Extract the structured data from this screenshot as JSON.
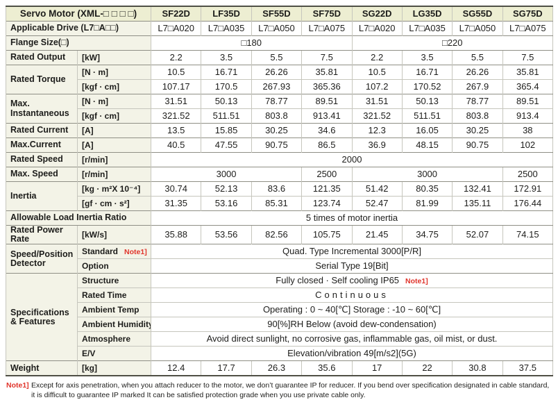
{
  "colors": {
    "header_bg": "#edeed2",
    "label_bg": "#f3f3e7",
    "note_red": "#e0342b",
    "border_light": "#c6c6bd",
    "border_med": "#8f8f85",
    "border_dark": "#4f4f45"
  },
  "table": {
    "title": "Servo Motor (XML-□ □ □ □)",
    "columns": [
      "SF22D",
      "LF35D",
      "SF55D",
      "SF75D",
      "SG22D",
      "LG35D",
      "SG55D",
      "SG75D"
    ],
    "rows": [
      {
        "cells": [
          {
            "type": "h",
            "cls": "title",
            "cs": 2,
            "text": "Servo Motor (XML-□ □ □ □)",
            "name": "table-title"
          },
          {
            "type": "h",
            "text": "SF22D"
          },
          {
            "type": "h",
            "text": "LF35D"
          },
          {
            "type": "h",
            "text": "SF55D"
          },
          {
            "type": "h",
            "text": "SF75D"
          },
          {
            "type": "h",
            "text": "SG22D"
          },
          {
            "type": "h",
            "text": "LG35D"
          },
          {
            "type": "h",
            "text": "SG55D"
          },
          {
            "type": "h",
            "text": "SG75D"
          }
        ]
      },
      {
        "grp": true,
        "cells": [
          {
            "type": "l",
            "cs": 2,
            "text": "Applicable Drive (L7□A□□)"
          },
          {
            "type": "d",
            "text": "L7□A020"
          },
          {
            "type": "d",
            "text": "L7□A035"
          },
          {
            "type": "d",
            "text": "L7□A050"
          },
          {
            "type": "d",
            "text": "L7□A075"
          },
          {
            "type": "d",
            "text": "L7□A020"
          },
          {
            "type": "d",
            "text": "L7□A035"
          },
          {
            "type": "d",
            "text": "L7□A050"
          },
          {
            "type": "d",
            "text": "L7□A075"
          }
        ]
      },
      {
        "grp": true,
        "cells": [
          {
            "type": "l",
            "cs": 2,
            "text": "Flange Size(□)"
          },
          {
            "type": "d",
            "cs": 4,
            "text": "□180"
          },
          {
            "type": "d",
            "cs": 4,
            "text": "□220"
          }
        ]
      },
      {
        "grp": true,
        "cells": [
          {
            "type": "l",
            "text": "Rated Output"
          },
          {
            "type": "u",
            "text": "[kW]"
          },
          {
            "type": "d",
            "text": "2.2"
          },
          {
            "type": "d",
            "text": "3.5"
          },
          {
            "type": "d",
            "text": "5.5"
          },
          {
            "type": "d",
            "text": "7.5"
          },
          {
            "type": "d",
            "text": "2.2"
          },
          {
            "type": "d",
            "text": "3.5"
          },
          {
            "type": "d",
            "text": "5.5"
          },
          {
            "type": "d",
            "text": "7.5"
          }
        ]
      },
      {
        "grp": true,
        "cells": [
          {
            "type": "l",
            "rs": 2,
            "text": "Rated Torque"
          },
          {
            "type": "u",
            "text": "[N · m]"
          },
          {
            "type": "d",
            "text": "10.5"
          },
          {
            "type": "d",
            "text": "16.71"
          },
          {
            "type": "d",
            "text": "26.26"
          },
          {
            "type": "d",
            "text": "35.81"
          },
          {
            "type": "d",
            "text": "10.5"
          },
          {
            "type": "d",
            "text": "16.71"
          },
          {
            "type": "d",
            "text": "26.26"
          },
          {
            "type": "d",
            "text": "35.81"
          }
        ]
      },
      {
        "cells": [
          {
            "type": "u",
            "text": "[kgf · cm]"
          },
          {
            "type": "d",
            "text": "107.17"
          },
          {
            "type": "d",
            "text": "170.5"
          },
          {
            "type": "d",
            "text": "267.93"
          },
          {
            "type": "d",
            "text": "365.36"
          },
          {
            "type": "d",
            "text": "107.2"
          },
          {
            "type": "d",
            "text": "170.52"
          },
          {
            "type": "d",
            "text": "267.9"
          },
          {
            "type": "d",
            "text": "365.4"
          }
        ]
      },
      {
        "grp": true,
        "cells": [
          {
            "type": "l",
            "rs": 2,
            "text": "Max.\nInstantaneous"
          },
          {
            "type": "u",
            "text": "[N · m]"
          },
          {
            "type": "d",
            "text": "31.51"
          },
          {
            "type": "d",
            "text": "50.13"
          },
          {
            "type": "d",
            "text": "78.77"
          },
          {
            "type": "d",
            "text": "89.51"
          },
          {
            "type": "d",
            "text": "31.51"
          },
          {
            "type": "d",
            "text": "50.13"
          },
          {
            "type": "d",
            "text": "78.77"
          },
          {
            "type": "d",
            "text": "89.51"
          }
        ]
      },
      {
        "cells": [
          {
            "type": "u",
            "text": "[kgf · cm]"
          },
          {
            "type": "d",
            "text": "321.52"
          },
          {
            "type": "d",
            "text": "511.51"
          },
          {
            "type": "d",
            "text": "803.8"
          },
          {
            "type": "d",
            "text": "913.41"
          },
          {
            "type": "d",
            "text": "321.52"
          },
          {
            "type": "d",
            "text": "511.51"
          },
          {
            "type": "d",
            "text": "803.8"
          },
          {
            "type": "d",
            "text": "913.4"
          }
        ]
      },
      {
        "grp": true,
        "cells": [
          {
            "type": "l",
            "text": "Rated Current"
          },
          {
            "type": "u",
            "text": "[A]"
          },
          {
            "type": "d",
            "text": "13.5"
          },
          {
            "type": "d",
            "text": "15.85"
          },
          {
            "type": "d",
            "text": "30.25"
          },
          {
            "type": "d",
            "text": "34.6"
          },
          {
            "type": "d",
            "text": "12.3"
          },
          {
            "type": "d",
            "text": "16.05"
          },
          {
            "type": "d",
            "text": "30.25"
          },
          {
            "type": "d",
            "text": "38"
          }
        ]
      },
      {
        "grp": true,
        "cells": [
          {
            "type": "l",
            "text": "Max.Current"
          },
          {
            "type": "u",
            "text": "[A]"
          },
          {
            "type": "d",
            "text": "40.5"
          },
          {
            "type": "d",
            "text": "47.55"
          },
          {
            "type": "d",
            "text": "90.75"
          },
          {
            "type": "d",
            "text": "86.5"
          },
          {
            "type": "d",
            "text": "36.9"
          },
          {
            "type": "d",
            "text": "48.15"
          },
          {
            "type": "d",
            "text": "90.75"
          },
          {
            "type": "d",
            "text": "102"
          }
        ]
      },
      {
        "grp": true,
        "cells": [
          {
            "type": "l",
            "text": "Rated Speed"
          },
          {
            "type": "u",
            "text": "[r/min]"
          },
          {
            "type": "d",
            "cs": 8,
            "text": "2000"
          }
        ]
      },
      {
        "grp": true,
        "cells": [
          {
            "type": "l",
            "text": "Max. Speed"
          },
          {
            "type": "u",
            "text": "[r/min]"
          },
          {
            "type": "d",
            "cs": 3,
            "text": "3000"
          },
          {
            "type": "d",
            "text": "2500"
          },
          {
            "type": "d",
            "cs": 3,
            "text": "3000"
          },
          {
            "type": "d",
            "text": "2500"
          }
        ]
      },
      {
        "grp": true,
        "cells": [
          {
            "type": "l",
            "rs": 2,
            "text": "Inertia"
          },
          {
            "type": "u",
            "text": "[kg · m²X 10⁻⁴]"
          },
          {
            "type": "d",
            "text": "30.74"
          },
          {
            "type": "d",
            "text": "52.13"
          },
          {
            "type": "d",
            "text": "83.6"
          },
          {
            "type": "d",
            "text": "121.35"
          },
          {
            "type": "d",
            "text": "51.42"
          },
          {
            "type": "d",
            "text": "80.35"
          },
          {
            "type": "d",
            "text": "132.41"
          },
          {
            "type": "d",
            "text": "172.91"
          }
        ]
      },
      {
        "cells": [
          {
            "type": "u",
            "text": "[gf · cm · s²]"
          },
          {
            "type": "d",
            "text": "31.35"
          },
          {
            "type": "d",
            "text": "53.16"
          },
          {
            "type": "d",
            "text": "85.31"
          },
          {
            "type": "d",
            "text": "123.74"
          },
          {
            "type": "d",
            "text": "52.47"
          },
          {
            "type": "d",
            "text": "81.99"
          },
          {
            "type": "d",
            "text": "135.11"
          },
          {
            "type": "d",
            "text": "176.44"
          }
        ]
      },
      {
        "grp": true,
        "cells": [
          {
            "type": "l",
            "cs": 2,
            "text": "Allowable Load Inertia Ratio"
          },
          {
            "type": "d",
            "cs": 8,
            "text": "5 times of motor inertia"
          }
        ]
      },
      {
        "grp": true,
        "cells": [
          {
            "type": "l",
            "text": "Rated Power Rate"
          },
          {
            "type": "u",
            "text": "[kW/s]"
          },
          {
            "type": "d",
            "text": "35.88"
          },
          {
            "type": "d",
            "text": "53.56"
          },
          {
            "type": "d",
            "text": "82.56"
          },
          {
            "type": "d",
            "text": "105.75"
          },
          {
            "type": "d",
            "text": "21.45"
          },
          {
            "type": "d",
            "text": "34.75"
          },
          {
            "type": "d",
            "text": "52.07"
          },
          {
            "type": "d",
            "text": "74.15"
          }
        ]
      },
      {
        "grp": true,
        "cells": [
          {
            "type": "l",
            "rs": 2,
            "text": "Speed/Position\nDetector"
          },
          {
            "type": "u",
            "text": "Standard",
            "note": "Note1]"
          },
          {
            "type": "d",
            "cs": 8,
            "text": "Quad. Type Incremental 3000[P/R]"
          }
        ]
      },
      {
        "cells": [
          {
            "type": "u",
            "text": "Option"
          },
          {
            "type": "d",
            "cs": 8,
            "text": "Serial Type 19[Bit]"
          }
        ]
      },
      {
        "grp": true,
        "cells": [
          {
            "type": "l",
            "rs": 6,
            "text": "Specifications\n& Features"
          },
          {
            "type": "u",
            "text": "Structure"
          },
          {
            "type": "d",
            "cs": 8,
            "text": "Fully closed · Self cooling IP65",
            "note": "Note1]"
          }
        ]
      },
      {
        "cells": [
          {
            "type": "u",
            "text": "Rated Time"
          },
          {
            "type": "d",
            "cs": 8,
            "cls": "spread",
            "text": "Continuous"
          }
        ]
      },
      {
        "cells": [
          {
            "type": "u",
            "text": "Ambient Temp"
          },
          {
            "type": "d",
            "cs": 8,
            "text": "Operating : 0 ~ 40[℃] Storage : -10 ~ 60[℃]"
          }
        ]
      },
      {
        "cells": [
          {
            "type": "u",
            "text": "Ambient Humidity"
          },
          {
            "type": "d",
            "cs": 8,
            "text": "90[%]RH Below (avoid dew-condensation)"
          }
        ]
      },
      {
        "cells": [
          {
            "type": "u",
            "text": "Atmosphere"
          },
          {
            "type": "d",
            "cs": 8,
            "text": "Avoid direct sunlight, no corrosive gas, inflammable gas, oil mist, or dust."
          }
        ]
      },
      {
        "cells": [
          {
            "type": "u",
            "text": "E/V"
          },
          {
            "type": "d",
            "cs": 8,
            "text": "Elevation/vibration 49[m/s2](5G)"
          }
        ]
      },
      {
        "grp": true,
        "cells": [
          {
            "type": "l",
            "text": "Weight"
          },
          {
            "type": "u",
            "text": "[kg]"
          },
          {
            "type": "d",
            "text": "12.4"
          },
          {
            "type": "d",
            "text": "17.7"
          },
          {
            "type": "d",
            "text": "26.3"
          },
          {
            "type": "d",
            "text": "35.6"
          },
          {
            "type": "d",
            "text": "17"
          },
          {
            "type": "d",
            "text": "22"
          },
          {
            "type": "d",
            "text": "30.8"
          },
          {
            "type": "d",
            "text": "37.5"
          }
        ]
      }
    ]
  },
  "footnote": {
    "label": "Note1]",
    "lines": [
      "Except for axis penetration, when you attach reducer to the motor, we don’t guarantee IP for reducer. If you bend over specification designated in cable standard,",
      "it is difficult to guarantee IP marked It can be satisfied protection grade when you use private cable only."
    ]
  }
}
